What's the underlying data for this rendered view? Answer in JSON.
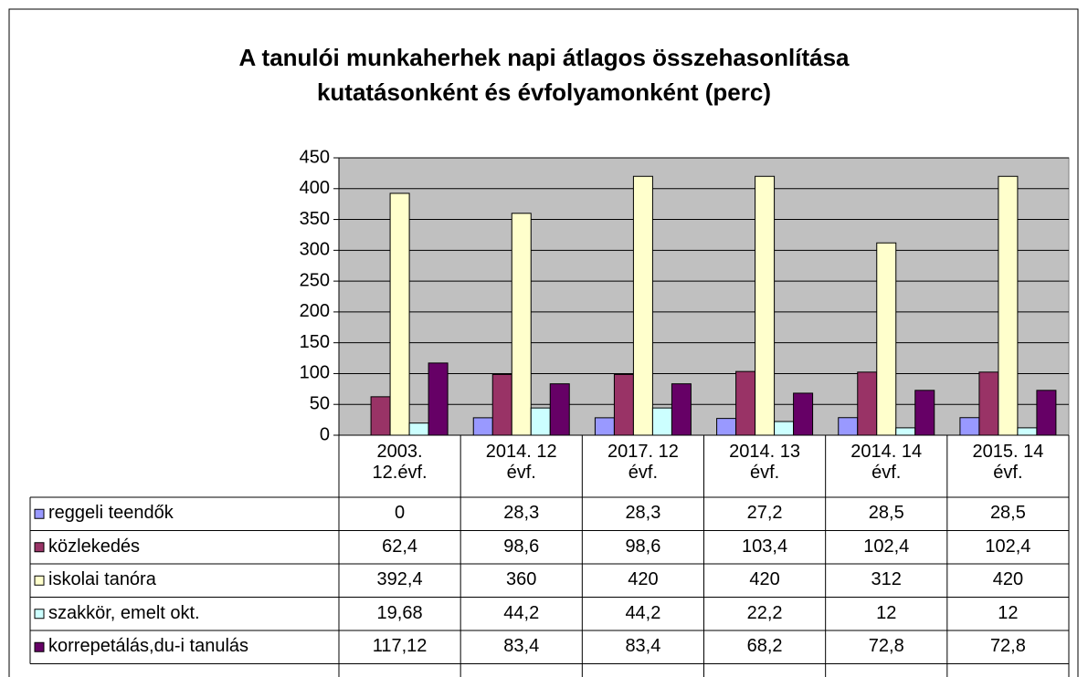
{
  "chart_data": {
    "type": "bar",
    "title": "A tanulói munkaherhek napi átlagos összehasonlítása\nkutatásonként és évfolyamonként (perc)",
    "categories": [
      "2003.\n12.évf.",
      "2014. 12\névf.",
      "2017. 12\névf.",
      "2014. 13\névf.",
      "2014. 14\névf.",
      "2015. 14\névf."
    ],
    "series": [
      {
        "name": "reggeli teendők",
        "color": "#9999ff",
        "values": [
          0,
          28.3,
          28.3,
          27.2,
          28.5,
          28.5
        ],
        "value_labels": [
          "0",
          "28,3",
          "28,3",
          "27,2",
          "28,5",
          "28,5"
        ]
      },
      {
        "name": "közlekedés",
        "color": "#993366",
        "values": [
          62.4,
          98.6,
          98.6,
          103.4,
          102.4,
          102.4
        ],
        "value_labels": [
          "62,4",
          "98,6",
          "98,6",
          "103,4",
          "102,4",
          "102,4"
        ]
      },
      {
        "name": "iskolai tanóra",
        "color": "#ffffcc",
        "values": [
          392.4,
          360,
          420,
          420,
          312,
          420
        ],
        "value_labels": [
          "392,4",
          "360",
          "420",
          "420",
          "312",
          "420"
        ]
      },
      {
        "name": "szakkör, emelt okt.",
        "color": "#ccffff",
        "values": [
          19.68,
          44.2,
          44.2,
          22.2,
          12,
          12
        ],
        "value_labels": [
          "19,68",
          "44,2",
          "44,2",
          "22,2",
          "12",
          "12"
        ]
      },
      {
        "name": "korrepetálás,du-i tanulás",
        "color": "#660066",
        "values": [
          117.12,
          83.4,
          83.4,
          68.2,
          72.8,
          72.8
        ],
        "value_labels": [
          "117,12",
          "83,4",
          "83,4",
          "68,2",
          "72,8",
          "72,8"
        ]
      }
    ],
    "ylim": [
      0,
      450
    ],
    "yticks": [
      0,
      50,
      100,
      150,
      200,
      250,
      300,
      350,
      400,
      450
    ],
    "grid": true,
    "plot_background": "#c0c0c0",
    "legend": "table"
  }
}
